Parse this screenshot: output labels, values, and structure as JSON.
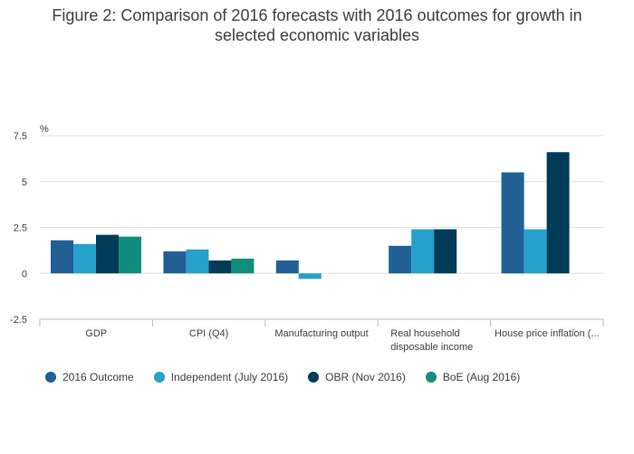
{
  "chart_data": {
    "type": "bar",
    "title_line1": "Figure 2: Comparison of 2016 forecasts with 2016 outcomes for growth in",
    "title_line2": "selected economic variables",
    "ylabel": "%",
    "ylim": [
      -2.5,
      7.5
    ],
    "yticks": [
      -2.5,
      0,
      2.5,
      5,
      7.5
    ],
    "ytick_labels": [
      "-2.5",
      "0",
      "2.5",
      "5",
      "7.5"
    ],
    "grid": true,
    "legend_position": "bottom",
    "categories": [
      [
        "GDP"
      ],
      [
        "CPI (Q4)"
      ],
      [
        "Manufacturing output"
      ],
      [
        "Real household",
        "disposable income"
      ],
      [
        "House price inflation (..."
      ]
    ],
    "series": [
      {
        "name": "2016 Outcome",
        "color": "#206095",
        "values": [
          1.8,
          1.2,
          0.7,
          1.5,
          5.5
        ]
      },
      {
        "name": "Independent (July 2016)",
        "color": "#27a0cc",
        "values": [
          1.6,
          1.3,
          -0.3,
          2.4,
          2.4
        ]
      },
      {
        "name": "OBR (Nov 2016)",
        "color": "#003c57",
        "values": [
          2.1,
          0.7,
          null,
          2.4,
          6.6
        ]
      },
      {
        "name": "BoE (Aug 2016)",
        "color": "#118c7b",
        "values": [
          2.0,
          0.8,
          null,
          null,
          null
        ]
      }
    ]
  }
}
